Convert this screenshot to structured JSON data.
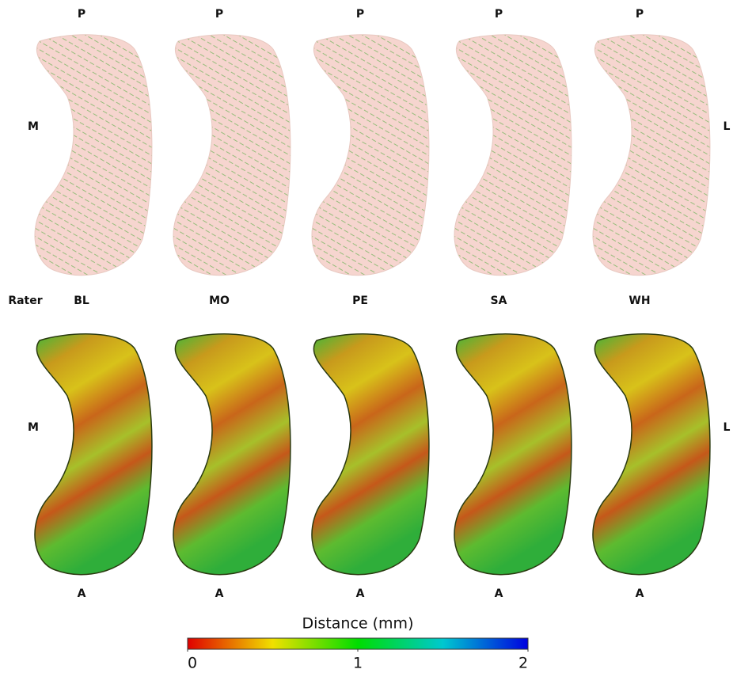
{
  "top_row": {
    "labels": [
      "P",
      "P",
      "P",
      "P",
      "P"
    ],
    "left": "M",
    "right": "L"
  },
  "raters": {
    "title": "Rater",
    "names": [
      "BL",
      "MO",
      "PE",
      "SA",
      "WH"
    ]
  },
  "bottom_row": {
    "labels": [
      "A",
      "A",
      "A",
      "A",
      "A"
    ],
    "left": "M",
    "right": "L"
  },
  "colorbar": {
    "title": "Distance (mm)",
    "range": [
      0,
      2
    ],
    "ticks": [
      0,
      1,
      2
    ]
  }
}
